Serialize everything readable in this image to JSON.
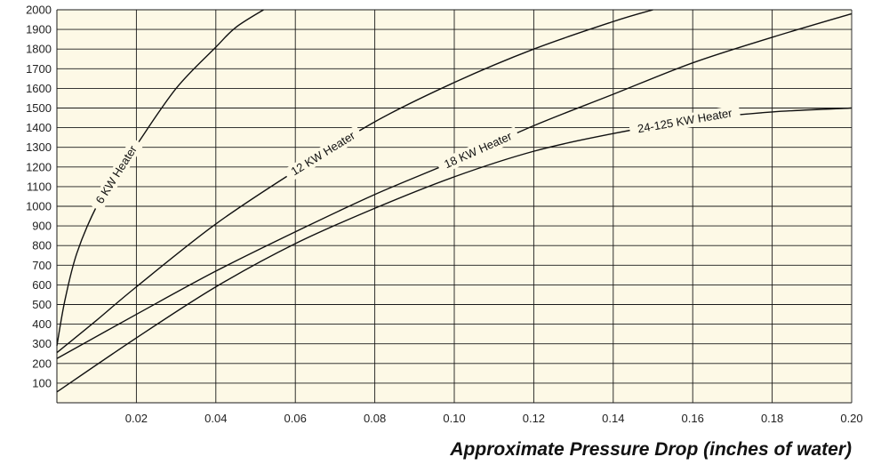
{
  "chart_data": {
    "type": "line",
    "xlabel": "Approximate Pressure Drop (inches of water)",
    "ylabel": "",
    "xlim": [
      0,
      0.2
    ],
    "ylim": [
      0,
      2000
    ],
    "x_ticks": [
      "0.02",
      "0.04",
      "0.06",
      "0.08",
      "0.10",
      "0.12",
      "0.14",
      "0.16",
      "0.18",
      "0.20"
    ],
    "y_ticks": [
      "100",
      "200",
      "300",
      "400",
      "500",
      "600",
      "700",
      "800",
      "900",
      "1000",
      "1100",
      "1200",
      "1300",
      "1400",
      "1500",
      "1600",
      "1700",
      "1800",
      "1900",
      "2000"
    ],
    "grid": true,
    "colors": {
      "background": "#fdf9e6",
      "grid": "#1a1a1a",
      "line": "#111111"
    },
    "series": [
      {
        "name": "6 KW Heater",
        "x": [
          0,
          0.002,
          0.005,
          0.01,
          0.015,
          0.02,
          0.03,
          0.04,
          0.045,
          0.052
        ],
        "y": [
          290,
          520,
          760,
          1000,
          1160,
          1310,
          1600,
          1810,
          1910,
          2000
        ]
      },
      {
        "name": "12 KW Heater",
        "x": [
          0,
          0.01,
          0.02,
          0.04,
          0.06,
          0.08,
          0.1,
          0.12,
          0.14,
          0.15
        ],
        "y": [
          255,
          420,
          590,
          910,
          1180,
          1430,
          1630,
          1800,
          1940,
          2000
        ]
      },
      {
        "name": "18 KW Heater",
        "x": [
          0,
          0.02,
          0.04,
          0.06,
          0.08,
          0.1,
          0.12,
          0.14,
          0.16,
          0.18,
          0.2
        ],
        "y": [
          225,
          450,
          670,
          870,
          1060,
          1230,
          1410,
          1570,
          1730,
          1860,
          1980
        ]
      },
      {
        "name": "24-125 KW Heater",
        "x": [
          0,
          0.02,
          0.04,
          0.06,
          0.08,
          0.1,
          0.12,
          0.14,
          0.16,
          0.18,
          0.2
        ],
        "y": [
          55,
          330,
          590,
          810,
          990,
          1150,
          1280,
          1370,
          1440,
          1480,
          1500
        ]
      }
    ]
  }
}
